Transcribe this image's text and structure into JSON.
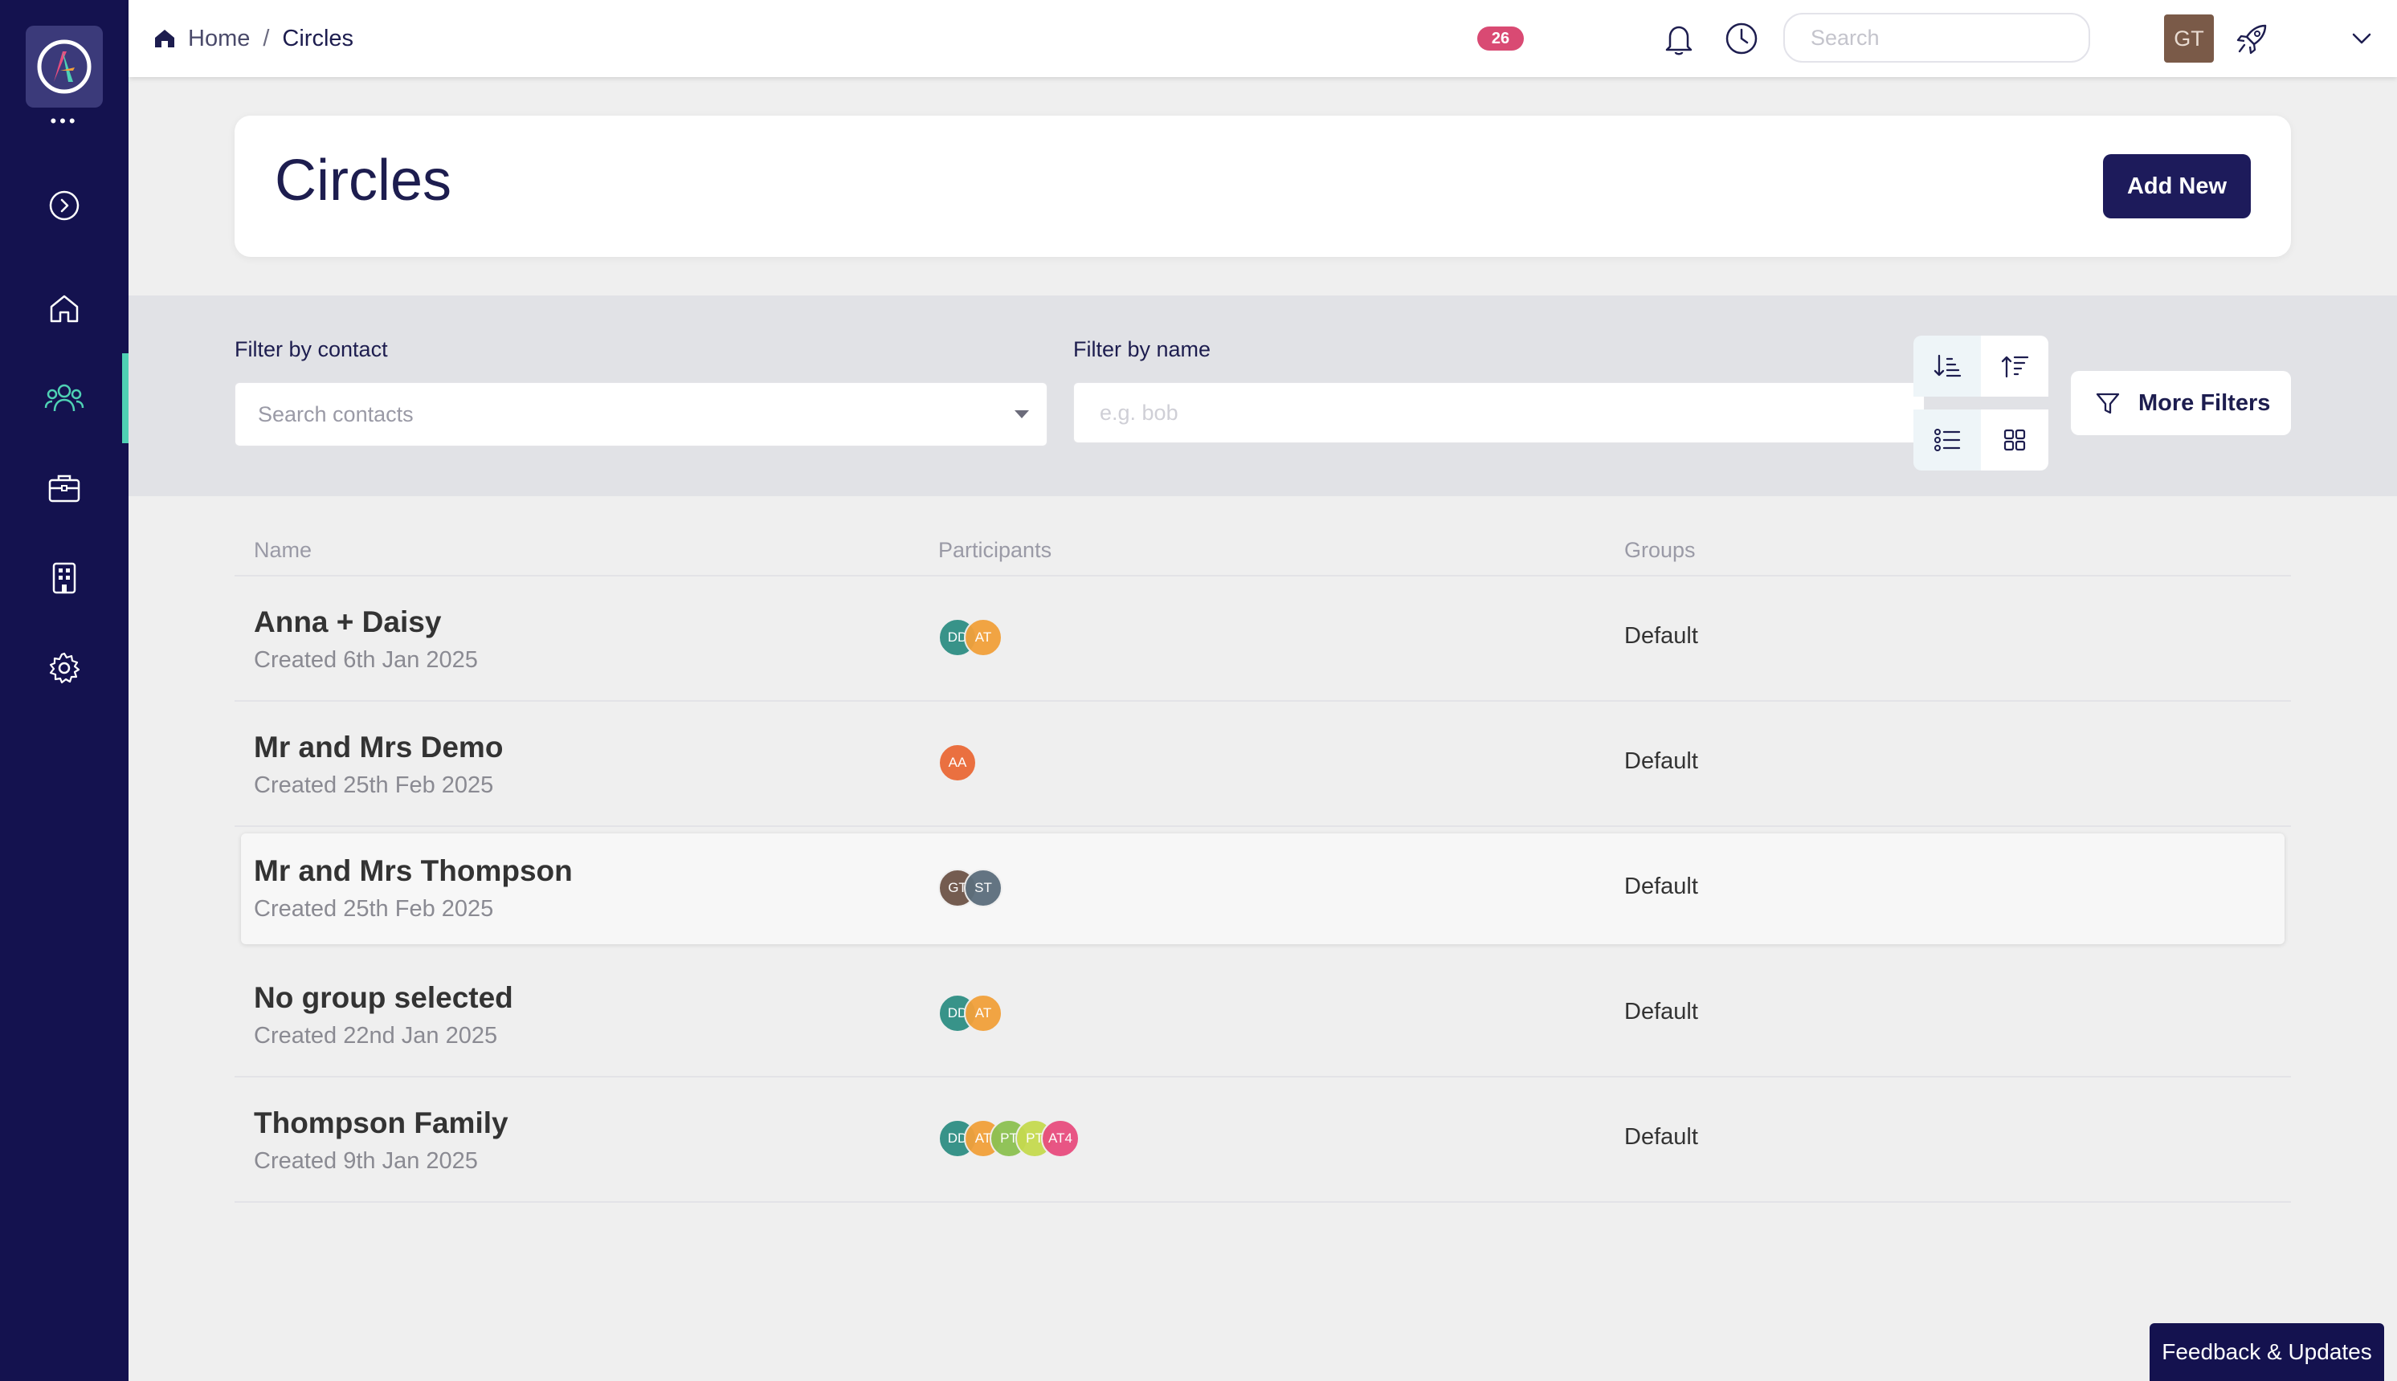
{
  "breadcrumb": {
    "home": "Home",
    "separator": "/",
    "current": "Circles"
  },
  "topbar": {
    "notification_count": "26",
    "search_placeholder": "Search",
    "user_initials": "GT"
  },
  "page": {
    "title": "Circles",
    "add_button": "Add New"
  },
  "filters": {
    "contact_label": "Filter by contact",
    "contact_placeholder": "Search contacts",
    "name_label": "Filter by name",
    "name_placeholder": "e.g. bob",
    "more_filters": "More Filters"
  },
  "table": {
    "headers": {
      "name": "Name",
      "participants": "Participants",
      "groups": "Groups"
    },
    "rows": [
      {
        "name": "Anna + Daisy",
        "created": "Created 6th Jan 2025",
        "group": "Default",
        "participants": [
          {
            "initials": "DD",
            "color": "#2f8f84"
          },
          {
            "initials": "AT",
            "color": "#f2a03a"
          }
        ]
      },
      {
        "name": "Mr and Mrs Demo",
        "created": "Created 25th Feb 2025",
        "group": "Default",
        "participants": [
          {
            "initials": "AA",
            "color": "#ea6a37"
          }
        ]
      },
      {
        "name": "Mr and Mrs Thompson",
        "created": "Created 25th Feb 2025",
        "group": "Default",
        "participants": [
          {
            "initials": "GT",
            "color": "#6d5448"
          },
          {
            "initials": "ST",
            "color": "#5c6e7c"
          }
        ]
      },
      {
        "name": "No group selected",
        "created": "Created 22nd Jan 2025",
        "group": "Default",
        "participants": [
          {
            "initials": "DD",
            "color": "#2f8f84"
          },
          {
            "initials": "AT",
            "color": "#f2a03a"
          }
        ]
      },
      {
        "name": "Thompson Family",
        "created": "Created 9th Jan 2025",
        "group": "Default",
        "participants": [
          {
            "initials": "DD",
            "color": "#2f8f84"
          },
          {
            "initials": "AT",
            "color": "#f2a03a"
          },
          {
            "initials": "PT",
            "color": "#8cc152"
          },
          {
            "initials": "PT",
            "color": "#c5da4f"
          },
          {
            "initials": "AT4",
            "color": "#e84d7f"
          }
        ]
      }
    ]
  },
  "feedback_button": "Feedback & Updates",
  "colors": {
    "sidebar": "#14124f",
    "accent": "#4fd1b4",
    "primary_button": "#1d1b5b",
    "badge": "#d94a73"
  }
}
